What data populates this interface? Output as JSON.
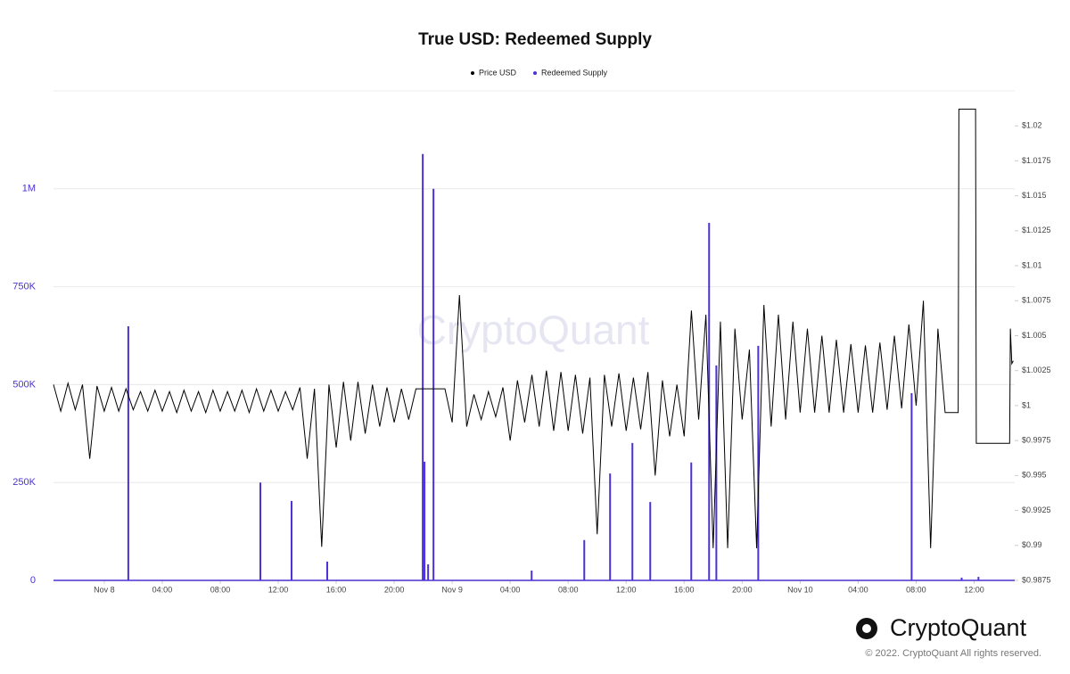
{
  "chart_data": {
    "type": "line",
    "title": "True USD: Redeemed Supply",
    "watermark": "CryptoQuant",
    "logo_text": "CryptoQuant",
    "copyright": "© 2022. CryptoQuant All rights reserved.",
    "grid": true,
    "legend": "top",
    "xlim": [
      -3.5,
      62.8
    ],
    "xticks": [
      {
        "value": 0,
        "label": "Nov 8"
      },
      {
        "value": 4,
        "label": "04:00"
      },
      {
        "value": 8,
        "label": "08:00"
      },
      {
        "value": 12,
        "label": "12:00"
      },
      {
        "value": 16,
        "label": "16:00"
      },
      {
        "value": 20,
        "label": "20:00"
      },
      {
        "value": 24,
        "label": "Nov 9"
      },
      {
        "value": 28,
        "label": "04:00"
      },
      {
        "value": 32,
        "label": "08:00"
      },
      {
        "value": 36,
        "label": "12:00"
      },
      {
        "value": 40,
        "label": "16:00"
      },
      {
        "value": 44,
        "label": "20:00"
      },
      {
        "value": 48,
        "label": "Nov 10"
      },
      {
        "value": 52,
        "label": "04:00"
      },
      {
        "value": 56,
        "label": "08:00"
      },
      {
        "value": 60,
        "label": "12:00"
      }
    ],
    "ylim": [
      0,
      1250000
    ],
    "yticks": [
      0,
      {
        "value": 250000,
        "label": "250K"
      },
      {
        "value": 500000,
        "label": "500K"
      },
      {
        "value": 750000,
        "label": "750K"
      },
      {
        "value": 1000000,
        "label": "1M"
      }
    ],
    "y2lim": [
      0.9875,
      1.0225
    ],
    "y2ticks": [
      {
        "value": 0.9875,
        "label": "$0.9875"
      },
      {
        "value": 0.99,
        "label": "$0.99"
      },
      {
        "value": 0.9925,
        "label": "$0.9925"
      },
      {
        "value": 0.995,
        "label": "$0.995"
      },
      {
        "value": 0.9975,
        "label": "$0.9975"
      },
      {
        "value": 1,
        "label": "$1"
      },
      {
        "value": 1.0025,
        "label": "$1.0025"
      },
      {
        "value": 1.005,
        "label": "$1.005"
      },
      {
        "value": 1.0075,
        "label": "$1.0075"
      },
      {
        "value": 1.01,
        "label": "$1.01"
      },
      {
        "value": 1.0125,
        "label": "$1.0125"
      },
      {
        "value": 1.015,
        "label": "$1.015"
      },
      {
        "value": 1.0175,
        "label": "$1.0175"
      },
      {
        "value": 1.02,
        "label": "$1.02"
      }
    ],
    "series": [
      {
        "name": "Price USD",
        "color": "#000000",
        "axis": "y2",
        "type": "line",
        "x": [
          -3.5,
          -3,
          -2.5,
          -2,
          -1.5,
          -1,
          -0.5,
          0,
          0.5,
          1,
          1.5,
          2,
          2.5,
          3,
          3.5,
          4,
          4.5,
          5,
          5.5,
          6,
          6.5,
          7,
          7.5,
          8,
          8.5,
          9,
          9.5,
          10,
          10.5,
          11,
          11.5,
          12,
          12.5,
          13,
          13.5,
          14,
          14.5,
          15,
          15.5,
          16,
          16.5,
          17,
          17.5,
          18,
          18.5,
          19,
          19.5,
          20,
          20.5,
          21,
          21.5,
          22,
          22.5,
          23,
          23.5,
          24,
          24.5,
          25,
          25.5,
          26,
          26.5,
          27,
          27.5,
          28,
          28.5,
          29,
          29.5,
          30,
          30.5,
          31,
          31.5,
          32,
          32.5,
          33,
          33.5,
          34,
          34.5,
          35,
          35.5,
          36,
          36.5,
          37,
          37.5,
          38,
          38.5,
          39,
          39.5,
          40,
          40.5,
          41,
          41.5,
          42,
          42.5,
          43,
          43.5,
          44,
          44.5,
          45,
          45.5,
          46,
          46.5,
          47,
          47.5,
          48,
          48.5,
          49,
          49.5,
          50,
          50.5,
          51,
          51.5,
          52,
          52.5,
          53,
          53.5,
          54,
          54.5,
          55,
          55.5,
          56,
          56.5,
          57,
          57.5,
          58,
          58.9,
          58.95,
          60.1,
          60.15,
          62.45,
          62.5,
          62.6,
          62.7
        ],
        "values": [
          1.0015,
          0.9996,
          1.0016,
          0.9997,
          1.0015,
          0.9962,
          1.0014,
          0.9996,
          1.0013,
          0.9996,
          1.0012,
          0.9997,
          1.001,
          0.9996,
          1.0011,
          0.9996,
          1.001,
          0.9995,
          1.0011,
          0.9996,
          1.001,
          0.9995,
          1.0011,
          0.9996,
          1.001,
          0.9996,
          1.0011,
          0.9995,
          1.0012,
          0.9996,
          1.0011,
          0.9996,
          1.001,
          0.9997,
          1.0013,
          0.9962,
          1.0012,
          0.9899,
          1.0015,
          0.997,
          1.0017,
          0.9975,
          1.0017,
          0.998,
          1.0015,
          0.9985,
          1.0013,
          0.9988,
          1.0012,
          0.999,
          1.0012,
          1.0012,
          1.0012,
          1.0012,
          1.0012,
          0.9988,
          1.0079,
          0.9985,
          1.0008,
          0.999,
          1.001,
          0.9992,
          1.0013,
          0.9975,
          1.0018,
          0.9988,
          1.0022,
          0.9985,
          1.0025,
          0.9982,
          1.0024,
          0.9982,
          1.0022,
          0.998,
          1.002,
          0.9908,
          1.0022,
          0.9985,
          1.0023,
          0.9982,
          1.002,
          0.9983,
          1.0024,
          0.995,
          1.0018,
          0.9978,
          1.0015,
          0.9978,
          1.0068,
          0.999,
          1.0065,
          0.9898,
          1.006,
          0.9898,
          1.0055,
          0.999,
          1.004,
          0.9898,
          1.0072,
          0.9985,
          1.0065,
          0.999,
          1.006,
          0.9995,
          1.0055,
          0.9995,
          1.005,
          0.9995,
          1.0047,
          0.9995,
          1.0044,
          0.9995,
          1.0043,
          0.9995,
          1.0045,
          0.9997,
          1.005,
          0.9998,
          1.0058,
          1.0,
          1.0075,
          0.9898,
          1.0055,
          0.9995,
          0.9995,
          1.0212,
          1.0212,
          0.9973,
          0.9973,
          1.0055,
          1.003,
          1.0032
        ]
      },
      {
        "name": "Redeemed Supply",
        "color": "#4a32d6",
        "axis": "y",
        "type": "spike",
        "x": [
          1.66,
          10.77,
          12.92,
          15.38,
          21.97,
          22.09,
          22.34,
          22.71,
          29.48,
          33.11,
          34.89,
          36.43,
          37.66,
          40.49,
          41.72,
          42.22,
          45.11,
          55.69,
          59.14,
          60.3
        ],
        "values": [
          649000,
          250000,
          203000,
          48000,
          1089000,
          303000,
          41000,
          1000000,
          25000,
          103000,
          273000,
          351000,
          200000,
          301000,
          913000,
          549000,
          599000,
          478000,
          7000,
          9000
        ]
      }
    ]
  }
}
